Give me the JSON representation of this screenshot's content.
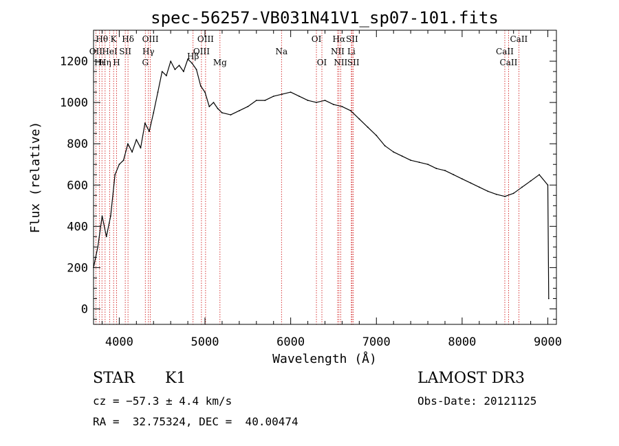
{
  "chart_data": {
    "type": "line",
    "title": "spec-56257-VB031N41V1_sp07-101.fits",
    "xlabel": "Wavelength (Å)",
    "ylabel": "Flux (relative)",
    "xlim": [
      3700,
      9100
    ],
    "ylim": [
      -75,
      1350
    ],
    "xticks": [
      4000,
      5000,
      6000,
      7000,
      8000,
      9000
    ],
    "yticks": [
      0,
      200,
      400,
      600,
      800,
      1000,
      1200
    ],
    "line_color": "#000000",
    "marker_color": "#cc0000",
    "series": [
      {
        "name": "flux",
        "x": [
          3700,
          3750,
          3800,
          3850,
          3900,
          3950,
          4000,
          4050,
          4100,
          4150,
          4200,
          4250,
          4300,
          4350,
          4400,
          4450,
          4500,
          4550,
          4600,
          4650,
          4700,
          4750,
          4800,
          4850,
          4900,
          4950,
          5000,
          5050,
          5100,
          5150,
          5200,
          5300,
          5400,
          5500,
          5600,
          5700,
          5800,
          5900,
          6000,
          6100,
          6200,
          6300,
          6400,
          6500,
          6600,
          6700,
          6800,
          6900,
          7000,
          7100,
          7200,
          7300,
          7400,
          7500,
          7600,
          7700,
          7800,
          7900,
          8000,
          8100,
          8200,
          8300,
          8400,
          8500,
          8600,
          8700,
          8800,
          8900,
          9000,
          9010
        ],
        "y": [
          200,
          300,
          450,
          350,
          450,
          650,
          700,
          720,
          800,
          760,
          820,
          780,
          900,
          860,
          950,
          1050,
          1150,
          1130,
          1200,
          1160,
          1180,
          1150,
          1210,
          1190,
          1160,
          1080,
          1050,
          980,
          1000,
          970,
          950,
          940,
          960,
          980,
          1010,
          1010,
          1030,
          1040,
          1050,
          1030,
          1010,
          1000,
          1010,
          990,
          980,
          960,
          920,
          880,
          840,
          790,
          760,
          740,
          720,
          710,
          700,
          680,
          670,
          650,
          630,
          610,
          590,
          570,
          555,
          545,
          560,
          590,
          620,
          650,
          600,
          50
        ]
      }
    ],
    "lines": [
      {
        "label": "Hθ",
        "x": 3798,
        "row": 0
      },
      {
        "label": "OII",
        "x": 3727,
        "row": 1
      },
      {
        "label": "Hη",
        "x": 3835,
        "row": 2
      },
      {
        "label": "Hι",
        "x": 3770,
        "row": 2
      },
      {
        "label": "K",
        "x": 3934,
        "row": 0
      },
      {
        "label": "HeI",
        "x": 3889,
        "row": 1
      },
      {
        "label": "H",
        "x": 3969,
        "row": 2
      },
      {
        "label": "SII",
        "x": 4070,
        "row": 1
      },
      {
        "label": "Hδ",
        "x": 4102,
        "row": 0
      },
      {
        "label": "OIII",
        "x": 4363,
        "row": 0
      },
      {
        "label": "Hγ",
        "x": 4340,
        "row": 1
      },
      {
        "label": "G",
        "x": 4304,
        "row": 2
      },
      {
        "label": "OIII",
        "x": 5007,
        "row": 0
      },
      {
        "label": "OIII",
        "x": 4959,
        "row": 1
      },
      {
        "label": "Mg",
        "x": 5175,
        "row": 2
      },
      {
        "label": "Hβ",
        "x": 4861,
        "row": 3
      },
      {
        "label": "Na",
        "x": 5893,
        "row": 1
      },
      {
        "label": "OI",
        "x": 6300,
        "row": 0
      },
      {
        "label": "OI",
        "x": 6364,
        "row": 2
      },
      {
        "label": "Hα",
        "x": 6563,
        "row": 0
      },
      {
        "label": "SII",
        "x": 6716,
        "row": 0
      },
      {
        "label": "NII",
        "x": 6548,
        "row": 1
      },
      {
        "label": "Li",
        "x": 6708,
        "row": 1
      },
      {
        "label": "NII",
        "x": 6583,
        "row": 2
      },
      {
        "label": "SII",
        "x": 6731,
        "row": 2
      },
      {
        "label": "CaII",
        "x": 8662,
        "row": 0
      },
      {
        "label": "CaII",
        "x": 8498,
        "row": 1
      },
      {
        "label": "CaII",
        "x": 8542,
        "row": 2
      }
    ]
  },
  "info": {
    "class": "STAR",
    "subclass": "K1",
    "survey": "LAMOST DR3",
    "cz": "cz = −57.3 ± 4.4 km/s",
    "obs_date": "Obs-Date: 20121125",
    "coords": "RA =  32.75324, DEC =  40.00474"
  }
}
